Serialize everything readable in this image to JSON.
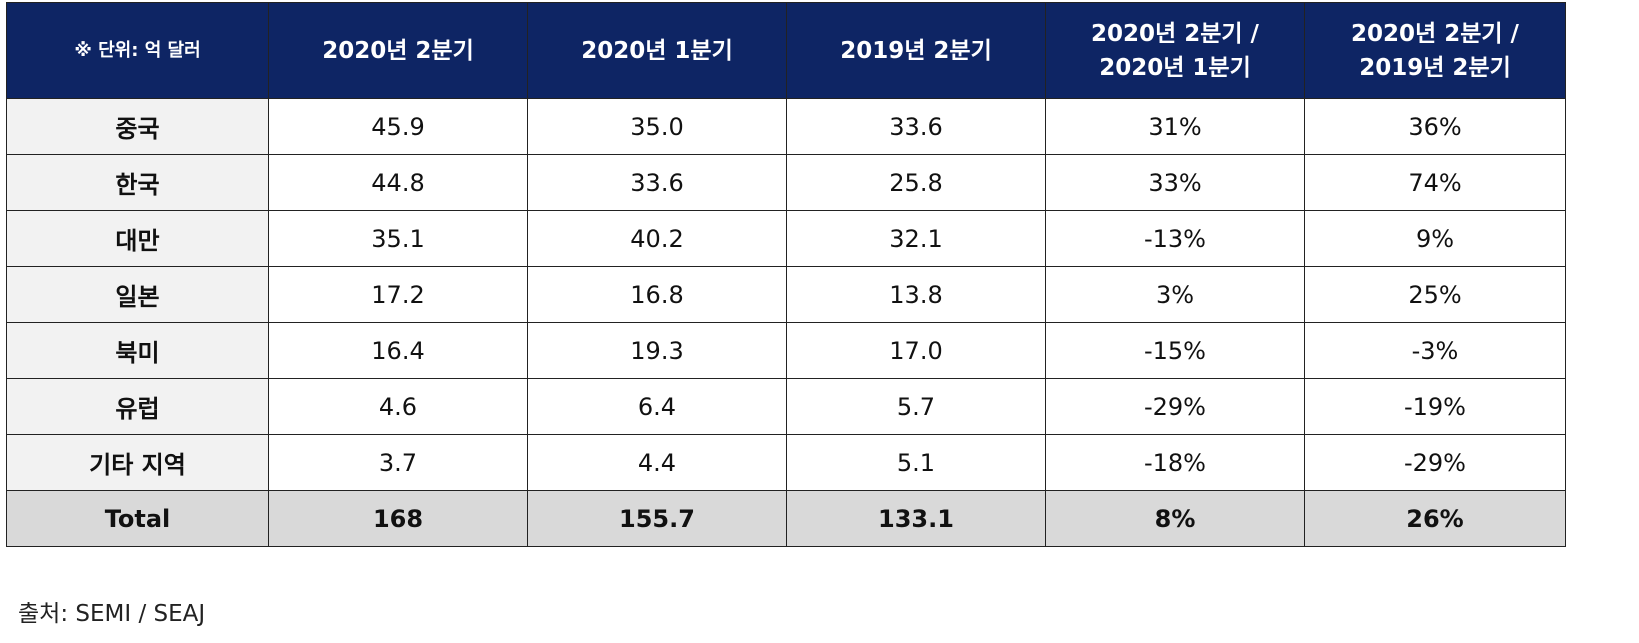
{
  "table": {
    "unit_label": "※ 단위: 억 달러",
    "headers": [
      "2020년 2분기",
      "2020년 1분기",
      "2019년 2분기",
      "2020년 2분기 /\n2020년 1분기",
      "2020년 2분기 /\n2019년 2분기"
    ],
    "rows": [
      {
        "region": "중국",
        "values": [
          "45.9",
          "35.0",
          "33.6",
          "31%",
          "36%"
        ]
      },
      {
        "region": "한국",
        "values": [
          "44.8",
          "33.6",
          "25.8",
          "33%",
          "74%"
        ]
      },
      {
        "region": "대만",
        "values": [
          "35.1",
          "40.2",
          "32.1",
          "-13%",
          "9%"
        ]
      },
      {
        "region": "일본",
        "values": [
          "17.2",
          "16.8",
          "13.8",
          "3%",
          "25%"
        ]
      },
      {
        "region": "북미",
        "values": [
          "16.4",
          "19.3",
          "17.0",
          "-15%",
          "-3%"
        ]
      },
      {
        "region": "유럽",
        "values": [
          "4.6",
          "6.4",
          "5.7",
          "-29%",
          "-19%"
        ]
      },
      {
        "region": "기타 지역",
        "values": [
          "3.7",
          "4.4",
          "5.1",
          "-18%",
          "-29%"
        ]
      }
    ],
    "total": {
      "region": "Total",
      "values": [
        "168",
        "155.7",
        "133.1",
        "8%",
        "26%"
      ]
    }
  },
  "source": "출처: SEMI / SEAJ",
  "colors": {
    "header_bg": "#0e2564",
    "label_bg": "#f2f2f2",
    "total_bg": "#d9d9d9"
  }
}
